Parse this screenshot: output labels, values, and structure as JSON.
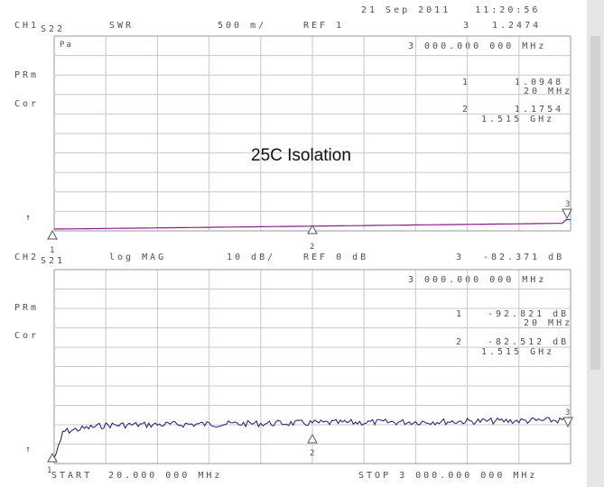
{
  "header": {
    "datetime": "21 Sep 2011   11:20:56"
  },
  "ch1": {
    "label": "CH1",
    "param": "S22",
    "format": "SWR",
    "scale": "500 m/",
    "ref": "REF 1",
    "marker_active": "3",
    "marker_active_value": "1.2474",
    "marker_freq": "3 000.000 000 MHz",
    "status_prm": "PRm",
    "status_cor": "Cor",
    "ref_arrow": "↑",
    "marker1_label": "1",
    "marker1_value": "1.0948",
    "marker1_freq": "20 MHz",
    "marker2_label": "2",
    "marker2_value": "1.1754",
    "marker2_freq": "1.515 GHz",
    "grid_icon": "Pa",
    "trace_color": "#8b1a8b"
  },
  "ch2": {
    "label": "CH2",
    "param": "S21",
    "format": "log MAG",
    "scale": "10 dB/",
    "ref": "REF 0 dB",
    "marker_active": "3",
    "marker_active_value": "-82.371 dB",
    "marker_freq": "3 000.000 000 MHz",
    "status_prm": "PRm",
    "status_cor": "Cor",
    "ref_arrow": "↑",
    "marker1_label": "1",
    "marker1_value": "-92.821 dB",
    "marker1_freq": "20 MHz",
    "marker2_label": "2",
    "marker2_value": "-82.512 dB",
    "marker2_freq": "1.515 GHz",
    "trace_color": "#1a1a7a"
  },
  "footer": {
    "start": "START  20.000 000 MHz",
    "stop": "STOP 3 000.000 000 MHz"
  },
  "overlay_title": "25C Isolation",
  "markers": {
    "m1": "1",
    "m2": "2",
    "m3": "3"
  }
}
